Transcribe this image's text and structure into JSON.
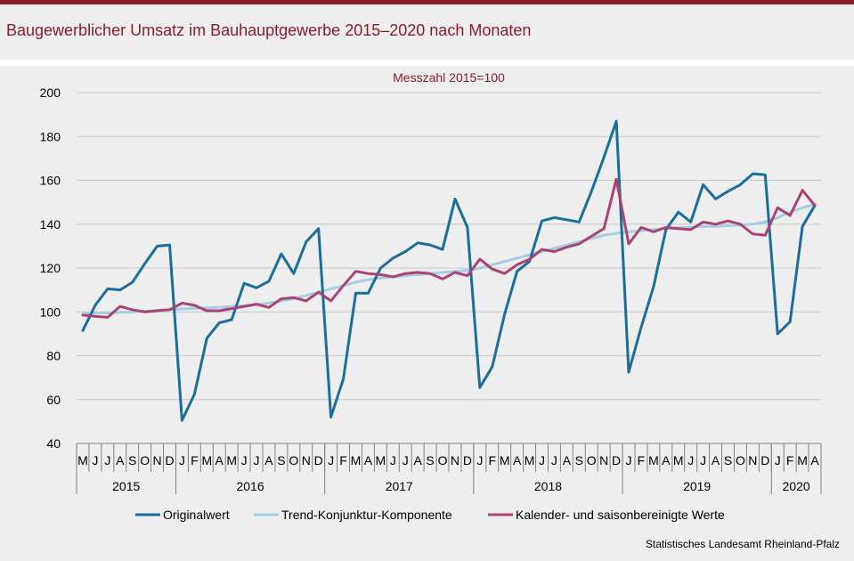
{
  "title": "Baugewerblicher Umsatz im Bauhauptgewerbe 2015–2020 nach Monaten",
  "source": "Statistisches Landesamt Rheinland-Pfalz",
  "colors": {
    "accent": "#8a1c2c",
    "original": "#1a6e99",
    "trend": "#a6cde3",
    "adjusted": "#a84474",
    "grid": "#c8c8c8"
  },
  "chart_data": {
    "type": "line",
    "subtitle": "Messzahl 2015=100",
    "ylim": [
      40,
      200
    ],
    "yticks": [
      "40",
      "60",
      "80",
      "100",
      "120",
      "140",
      "160",
      "180",
      "200"
    ],
    "grid": true,
    "legend_position": "bottom",
    "month_labels": [
      "M",
      "J",
      "J",
      "A",
      "S",
      "O",
      "N",
      "D",
      "J",
      "F",
      "M",
      "A",
      "M",
      "J",
      "J",
      "A",
      "S",
      "O",
      "N",
      "D",
      "J",
      "F",
      "M",
      "A",
      "M",
      "J",
      "J",
      "A",
      "S",
      "O",
      "N",
      "D",
      "J",
      "F",
      "M",
      "A",
      "M",
      "J",
      "J",
      "A",
      "S",
      "O",
      "N",
      "D",
      "J",
      "F",
      "M",
      "A",
      "M",
      "J",
      "J",
      "A",
      "S",
      "O",
      "N",
      "D",
      "J",
      "F",
      "M",
      "A"
    ],
    "year_groups": [
      {
        "label": "2015",
        "months": 8
      },
      {
        "label": "2016",
        "months": 12
      },
      {
        "label": "2017",
        "months": 12
      },
      {
        "label": "2018",
        "months": 12
      },
      {
        "label": "2019",
        "months": 12
      },
      {
        "label": "2020",
        "months": 4
      }
    ],
    "series": [
      {
        "name": "Originalwert",
        "color": "#1a6e99",
        "values": [
          91.5,
          103,
          110.5,
          110,
          113.5,
          122,
          130,
          130.5,
          50.5,
          62.5,
          88,
          95,
          96.5,
          113,
          111,
          114,
          126.5,
          117.5,
          132,
          138,
          52,
          69.5,
          108.5,
          108.5,
          120,
          124.5,
          127.5,
          131.5,
          130.5,
          128.5,
          151.5,
          138.5,
          65.5,
          75,
          99,
          118.5,
          123,
          141.5,
          143,
          142,
          141,
          155,
          170.5,
          187,
          72.5,
          93,
          111.5,
          137.5,
          145.5,
          141,
          158,
          151.5,
          155,
          158,
          163,
          162.5,
          90,
          95.5,
          139,
          148.5
        ]
      },
      {
        "name": "Trend-Konjunktur-Komponente",
        "color": "#a6cde3",
        "values": [
          99.5,
          99.5,
          99.5,
          99.8,
          100,
          100.3,
          100.7,
          101,
          101.3,
          101.6,
          101.8,
          102,
          102.4,
          102.8,
          103.3,
          104,
          105,
          106,
          107.5,
          109,
          110.5,
          112,
          113.5,
          114.7,
          115.5,
          116,
          116.5,
          117,
          117.5,
          118,
          118.5,
          119,
          120,
          121.5,
          123,
          124.5,
          126,
          127.5,
          129,
          130.5,
          132,
          133.5,
          135,
          135.8,
          136.5,
          137,
          137.5,
          138,
          138.3,
          138.6,
          139,
          139,
          139.3,
          139.6,
          140,
          141,
          143,
          145.5,
          147.5,
          149
        ]
      },
      {
        "name": "Kalender- und saisonbereinigte Werte",
        "color": "#a84474",
        "values": [
          98.5,
          98,
          97.5,
          102.5,
          101,
          100,
          100.5,
          101,
          104,
          103,
          100.5,
          100.5,
          101.5,
          102.5,
          103.5,
          102,
          106,
          106.5,
          105,
          109,
          105,
          112,
          118.5,
          117.5,
          117,
          116,
          117.5,
          118,
          117.5,
          115,
          118,
          116.5,
          124,
          119.5,
          117.5,
          121.5,
          124,
          128.5,
          127.5,
          129.5,
          131,
          134.5,
          138,
          160.5,
          131,
          138.5,
          136.5,
          138.5,
          138,
          137.5,
          141,
          140,
          141.5,
          140,
          135.5,
          135,
          147.5,
          144,
          155.5,
          148.5
        ]
      }
    ]
  }
}
